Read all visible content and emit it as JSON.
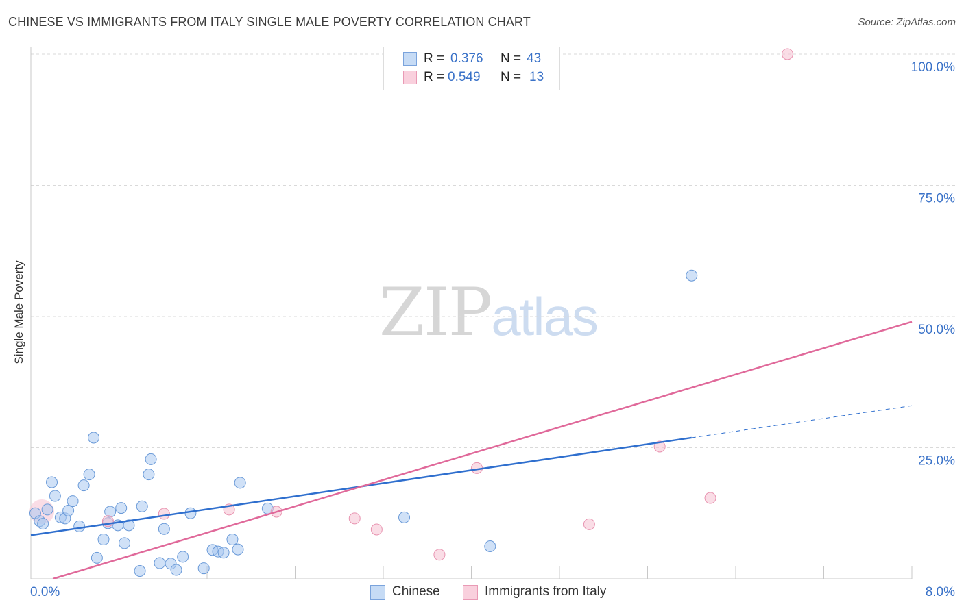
{
  "title": "CHINESE VS IMMIGRANTS FROM ITALY SINGLE MALE POVERTY CORRELATION CHART",
  "source": "Source: ZipAtlas.com",
  "watermark": {
    "zip": "ZIP",
    "atlas": "atlas"
  },
  "colors": {
    "chinese_fill": "#aac8f0",
    "chinese_stroke": "#6a9ad8",
    "chinese_line": "#2f6fce",
    "italy_fill": "#f6c1d1",
    "italy_stroke": "#e893b0",
    "italy_line": "#e0699a",
    "tick_label": "#3a72c8",
    "grid": "#d9d9d9"
  },
  "legend_top": [
    {
      "r_label": "R =",
      "r_value": "0.376",
      "n_label": "N =",
      "n_value": "43"
    },
    {
      "r_label": "R =",
      "r_value": "0.549",
      "n_label": "N =",
      "n_value": "13"
    }
  ],
  "chart_data": {
    "type": "scatter",
    "xlabel": "",
    "ylabel": "Single Male Poverty",
    "xlim": [
      0,
      8
    ],
    "ylim": [
      0,
      100
    ],
    "x_tick_labels": [
      "0.0%",
      "8.0%"
    ],
    "y_tick_labels": [
      "100.0%",
      "75.0%",
      "50.0%",
      "25.0%"
    ],
    "y_ticks": [
      100,
      75,
      50,
      25
    ],
    "grid": true,
    "legend_position": "bottom",
    "series": [
      {
        "name": "Chinese",
        "points": [
          [
            0.04,
            12.5
          ],
          [
            0.08,
            11.0
          ],
          [
            0.11,
            10.5
          ],
          [
            0.15,
            13.2
          ],
          [
            0.19,
            18.4
          ],
          [
            0.22,
            15.8
          ],
          [
            0.27,
            11.7
          ],
          [
            0.31,
            11.5
          ],
          [
            0.34,
            13.0
          ],
          [
            0.38,
            14.8
          ],
          [
            0.44,
            10.0
          ],
          [
            0.48,
            17.8
          ],
          [
            0.53,
            19.9
          ],
          [
            0.57,
            26.9
          ],
          [
            0.6,
            4.0
          ],
          [
            0.66,
            7.5
          ],
          [
            0.7,
            10.6
          ],
          [
            0.72,
            12.8
          ],
          [
            0.79,
            10.2
          ],
          [
            0.82,
            13.5
          ],
          [
            0.85,
            6.8
          ],
          [
            0.89,
            10.2
          ],
          [
            0.99,
            1.5
          ],
          [
            1.01,
            13.8
          ],
          [
            1.07,
            19.9
          ],
          [
            1.09,
            22.8
          ],
          [
            1.17,
            3.0
          ],
          [
            1.21,
            9.5
          ],
          [
            1.27,
            2.9
          ],
          [
            1.32,
            1.7
          ],
          [
            1.38,
            4.2
          ],
          [
            1.45,
            12.5
          ],
          [
            1.57,
            2.0
          ],
          [
            1.65,
            5.5
          ],
          [
            1.7,
            5.2
          ],
          [
            1.75,
            5.0
          ],
          [
            1.83,
            7.5
          ],
          [
            1.88,
            5.6
          ],
          [
            1.9,
            18.3
          ],
          [
            2.15,
            13.4
          ],
          [
            3.39,
            11.7
          ],
          [
            4.17,
            6.2
          ],
          [
            6.0,
            57.8
          ]
        ],
        "trend": {
          "x": [
            0,
            6.0
          ],
          "y": [
            8.3,
            26.9
          ]
        },
        "trend_dashed": {
          "x": [
            6.0,
            8.0
          ],
          "y": [
            26.9,
            33.0
          ]
        }
      },
      {
        "name": "Immigrants from Italy",
        "points": [
          [
            0.1,
            12.8
          ],
          [
            0.7,
            11.0
          ],
          [
            1.21,
            12.4
          ],
          [
            1.8,
            13.2
          ],
          [
            2.23,
            12.8
          ],
          [
            2.94,
            11.5
          ],
          [
            3.14,
            9.4
          ],
          [
            3.71,
            4.6
          ],
          [
            4.05,
            21.1
          ],
          [
            5.07,
            10.4
          ],
          [
            5.71,
            25.2
          ],
          [
            6.17,
            15.4
          ],
          [
            6.87,
            100.0
          ]
        ],
        "trend": {
          "x": [
            0.2,
            8.0
          ],
          "y": [
            0.0,
            49.0
          ]
        }
      }
    ]
  }
}
